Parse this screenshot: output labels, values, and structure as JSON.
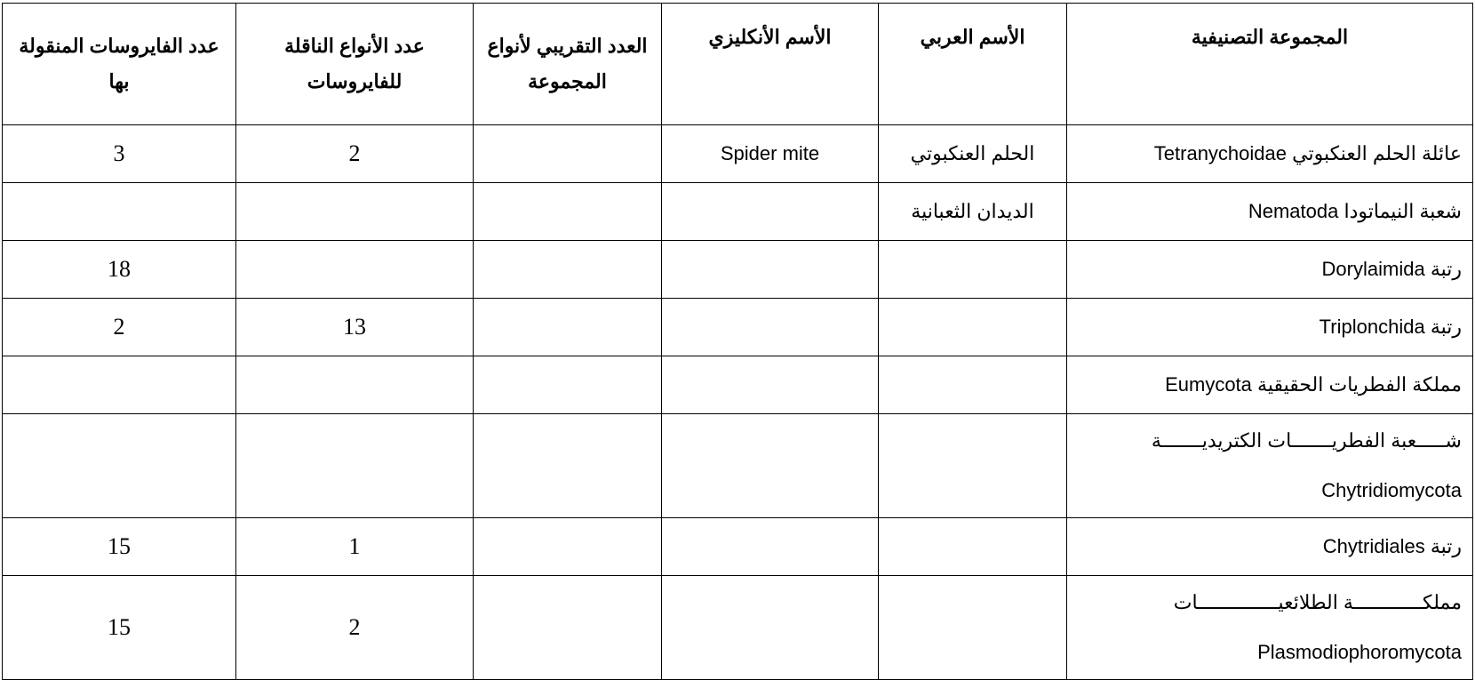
{
  "headers": {
    "group": "المجموعة التصنيفية",
    "arabic_name": "الأسم العربي",
    "english_name": "الأسم الأنكليزي",
    "approx_species": "العدد التقريبي لأنواع المجموعة",
    "vector_species": "عدد الأنواع الناقلة للفايروسات",
    "viruses": "عدد الفايروسات المنقولة بها"
  },
  "rows": [
    {
      "group": "عائلة الحلم العنكبوتي Tetranychoidae",
      "arabic_name": "الحلم العنكبوتي",
      "english_name": "Spider mite",
      "approx_species": "",
      "vector_species": "2",
      "viruses": "3"
    },
    {
      "group": "شعبة النيماتودا Nematoda",
      "arabic_name": "الديدان الثعبانية",
      "english_name": "",
      "approx_species": "",
      "vector_species": "",
      "viruses": ""
    },
    {
      "group": "رتبة Dorylaimida",
      "arabic_name": "",
      "english_name": "",
      "approx_species": "",
      "vector_species": "",
      "viruses": "18"
    },
    {
      "group": "رتبة Triplonchida",
      "arabic_name": "",
      "english_name": "",
      "approx_species": "",
      "vector_species": "13",
      "viruses": "2"
    },
    {
      "group": "مملكة الفطريات الحقيقية Eumycota",
      "arabic_name": "",
      "english_name": "",
      "approx_species": "",
      "vector_species": "",
      "viruses": ""
    },
    {
      "group_ar": "شـــــعبة الفطريـــــــات الكتريديـــــــة",
      "group_en": "Chytridiomycota",
      "arabic_name": "",
      "english_name": "",
      "approx_species": "",
      "vector_species": "",
      "viruses": ""
    },
    {
      "group": "رتبة Chytridiales",
      "arabic_name": "",
      "english_name": "",
      "approx_species": "",
      "vector_species": "1",
      "viruses": "15"
    },
    {
      "group_ar": "مملكــــــــــــة الطلائعيــــــــــــــات",
      "group_en": "Plasmodiophoromycota",
      "arabic_name": "",
      "english_name": "",
      "approx_species": "",
      "vector_species": "2",
      "viruses": "15"
    }
  ]
}
